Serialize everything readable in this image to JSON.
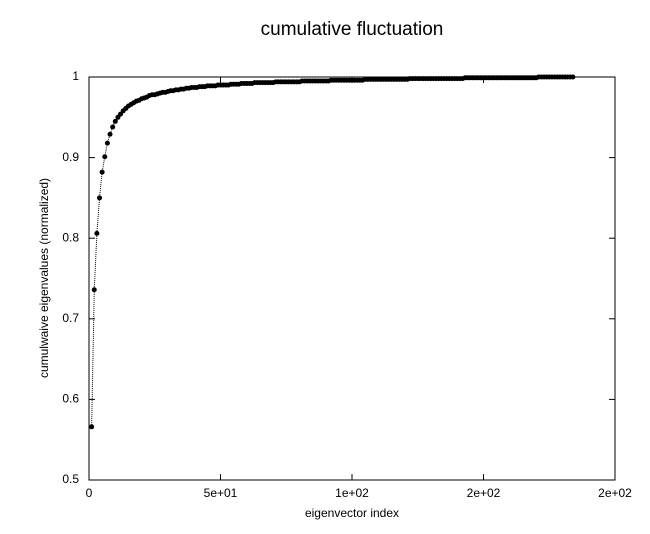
{
  "chart_data": {
    "type": "line",
    "title": "cumulative fluctuation",
    "xlabel": "eigenvector index",
    "ylabel": "cumulwaive eigenvalues (normalized)",
    "xlim": [
      0,
      200
    ],
    "ylim": [
      0.5,
      1
    ],
    "xticks": [
      0,
      {
        "value": 50,
        "label": "5e+01"
      },
      {
        "value": 100,
        "label": "1e+02"
      },
      {
        "value": 150,
        "label": "2e+02"
      },
      {
        "value": 200,
        "label": "2e+02"
      }
    ],
    "yticks": [
      0.5,
      0.6,
      0.7,
      0.8,
      0.9,
      1
    ],
    "color": "#000000",
    "x": [
      1,
      2,
      3,
      4,
      5,
      6,
      7,
      8,
      9,
      10,
      11,
      12,
      13,
      14,
      15,
      16,
      17,
      18,
      19,
      20,
      21,
      22,
      23,
      24,
      25,
      26,
      27,
      28,
      29,
      30,
      31,
      32,
      33,
      34,
      35,
      36,
      37,
      38,
      39,
      40,
      41,
      42,
      43,
      44,
      45,
      46,
      47,
      48,
      49,
      50,
      51,
      52,
      53,
      54,
      55,
      56,
      57,
      58,
      59,
      60,
      61,
      62,
      63,
      64,
      65,
      66,
      67,
      68,
      69,
      70,
      71,
      72,
      73,
      74,
      75,
      76,
      77,
      78,
      79,
      80,
      81,
      82,
      83,
      84,
      85,
      86,
      87,
      88,
      89,
      90,
      91,
      92,
      93,
      94,
      95,
      96,
      97,
      98,
      99,
      100,
      101,
      102,
      103,
      104,
      105,
      106,
      107,
      108,
      109,
      110,
      111,
      112,
      113,
      114,
      115,
      116,
      117,
      118,
      119,
      120,
      121,
      122,
      123,
      124,
      125,
      126,
      127,
      128,
      129,
      130,
      131,
      132,
      133,
      134,
      135,
      136,
      137,
      138,
      139,
      140,
      141,
      142,
      143,
      144,
      145,
      146,
      147,
      148,
      149,
      150,
      151,
      152,
      153,
      154,
      155,
      156,
      157,
      158,
      159,
      160,
      161,
      162,
      163,
      164,
      165,
      166,
      167,
      168,
      169,
      170,
      171,
      172,
      173,
      174,
      175,
      176,
      177,
      178,
      179,
      180,
      181,
      182,
      183,
      184
    ],
    "values": [
      0.566,
      0.736,
      0.806,
      0.85,
      0.882,
      0.901,
      0.918,
      0.929,
      0.938,
      0.945,
      0.95,
      0.954,
      0.958,
      0.961,
      0.964,
      0.966,
      0.968,
      0.97,
      0.971,
      0.973,
      0.974,
      0.975,
      0.977,
      0.978,
      0.978,
      0.979,
      0.98,
      0.981,
      0.981,
      0.982,
      0.983,
      0.983,
      0.984,
      0.984,
      0.985,
      0.985,
      0.986,
      0.986,
      0.987,
      0.987,
      0.987,
      0.988,
      0.988,
      0.988,
      0.989,
      0.989,
      0.989,
      0.989,
      0.99,
      0.99,
      0.99,
      0.99,
      0.99,
      0.991,
      0.991,
      0.991,
      0.991,
      0.992,
      0.992,
      0.992,
      0.992,
      0.992,
      0.993,
      0.993,
      0.993,
      0.993,
      0.993,
      0.993,
      0.993,
      0.993,
      0.994,
      0.994,
      0.994,
      0.994,
      0.994,
      0.994,
      0.994,
      0.994,
      0.994,
      0.994,
      0.995,
      0.995,
      0.995,
      0.995,
      0.995,
      0.995,
      0.995,
      0.995,
      0.995,
      0.995,
      0.995,
      0.996,
      0.996,
      0.996,
      0.996,
      0.996,
      0.996,
      0.996,
      0.996,
      0.996,
      0.996,
      0.996,
      0.996,
      0.996,
      0.997,
      0.997,
      0.997,
      0.997,
      0.997,
      0.997,
      0.997,
      0.997,
      0.997,
      0.997,
      0.997,
      0.997,
      0.997,
      0.997,
      0.997,
      0.997,
      0.997,
      0.998,
      0.998,
      0.998,
      0.998,
      0.998,
      0.998,
      0.998,
      0.998,
      0.998,
      0.998,
      0.998,
      0.998,
      0.998,
      0.998,
      0.998,
      0.998,
      0.998,
      0.998,
      0.998,
      0.998,
      0.998,
      0.999,
      0.999,
      0.999,
      0.999,
      0.999,
      0.999,
      0.999,
      0.999,
      0.999,
      0.999,
      0.999,
      0.999,
      0.999,
      0.999,
      0.999,
      0.999,
      0.999,
      0.999,
      0.999,
      0.999,
      0.999,
      0.999,
      0.999,
      0.999,
      0.999,
      0.999,
      0.999,
      0.999,
      1,
      1,
      1,
      1,
      1,
      1,
      1,
      1,
      1,
      1,
      1,
      1,
      1,
      1
    ]
  }
}
